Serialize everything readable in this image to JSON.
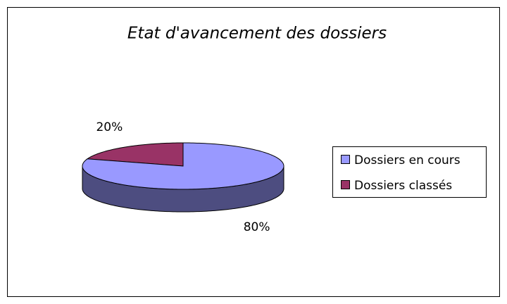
{
  "chart_data": {
    "type": "pie",
    "title": "Etat d'avancement des dossiers",
    "categories": [
      "Dossiers en cours",
      "Dossiers classés"
    ],
    "values": [
      80,
      20
    ],
    "value_labels": [
      "80%",
      "20%"
    ],
    "colors": [
      "#9999ff",
      "#993366"
    ],
    "three_d": true,
    "legend": "right"
  }
}
